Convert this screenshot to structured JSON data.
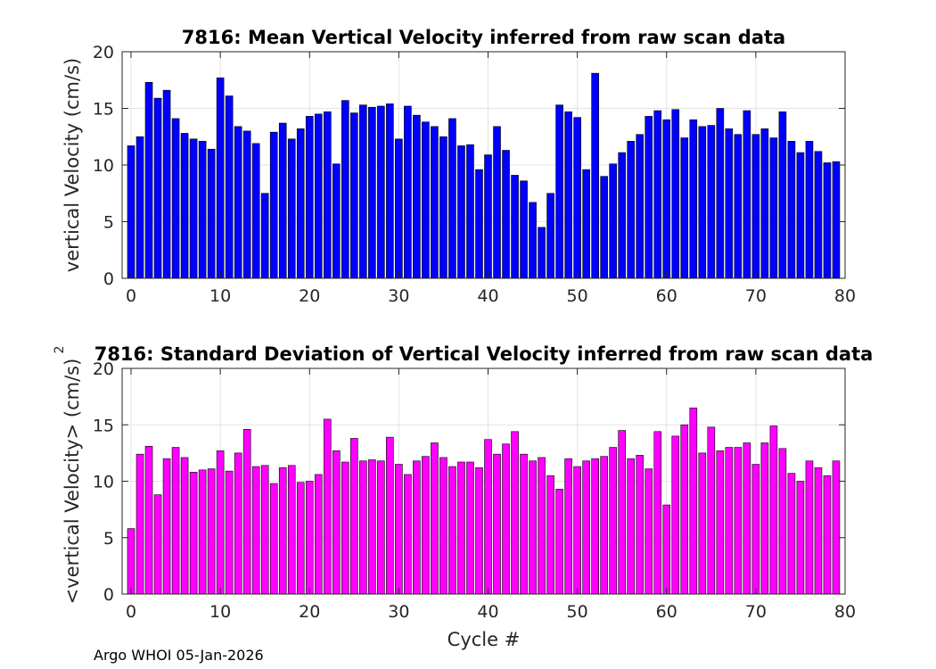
{
  "chart_data": [
    {
      "type": "bar",
      "title": "7816: Mean Vertical Velocity inferred from raw scan data",
      "xlabel": "",
      "ylabel": "vertical Velocity (cm/s)",
      "xlim": [
        -1,
        80
      ],
      "ylim": [
        0,
        20
      ],
      "xticks": [
        0,
        10,
        20,
        30,
        40,
        50,
        60,
        70,
        80
      ],
      "yticks": [
        0,
        5,
        10,
        15,
        20
      ],
      "grid": true,
      "color": "#0000ff",
      "x": [
        0,
        1,
        2,
        3,
        4,
        5,
        6,
        7,
        8,
        9,
        10,
        11,
        12,
        13,
        14,
        15,
        16,
        17,
        18,
        19,
        20,
        21,
        22,
        23,
        24,
        25,
        26,
        27,
        28,
        29,
        30,
        31,
        32,
        33,
        34,
        35,
        36,
        37,
        38,
        39,
        40,
        41,
        42,
        43,
        44,
        45,
        46,
        47,
        48,
        49,
        50,
        51,
        52,
        53,
        54,
        55,
        56,
        57,
        58,
        59,
        60,
        61,
        62,
        63,
        64,
        65,
        66,
        67,
        68,
        69,
        70,
        71,
        72,
        73,
        74,
        75,
        76,
        77,
        78,
        79
      ],
      "values": [
        11.7,
        12.5,
        17.3,
        15.9,
        16.6,
        14.1,
        12.8,
        12.3,
        12.1,
        11.4,
        17.7,
        16.1,
        13.4,
        13.0,
        11.9,
        7.5,
        12.9,
        13.7,
        12.3,
        13.2,
        14.3,
        14.5,
        14.7,
        10.1,
        15.7,
        14.6,
        15.3,
        15.1,
        15.2,
        15.4,
        12.3,
        15.2,
        14.4,
        13.8,
        13.4,
        12.5,
        14.1,
        11.7,
        11.8,
        9.6,
        10.9,
        13.4,
        11.3,
        9.1,
        8.6,
        6.7,
        4.5,
        7.5,
        15.3,
        14.7,
        14.2,
        9.6,
        18.1,
        9.0,
        10.1,
        11.1,
        12.1,
        12.7,
        14.3,
        14.8,
        14.0,
        14.9,
        12.4,
        14.0,
        13.4,
        13.5,
        15.0,
        13.2,
        12.7,
        14.8,
        12.7,
        13.2,
        12.4,
        14.7,
        12.1,
        11.1,
        12.1,
        11.2,
        10.2,
        10.3
      ]
    },
    {
      "type": "bar",
      "title": "7816: Standard Deviation of Vertical Velocity inferred from raw scan data",
      "xlabel": "Cycle #",
      "ylabel": "<vertical Velocity> (cm/s)",
      "ylabel_superscript": "2",
      "xlim": [
        -1,
        80
      ],
      "ylim": [
        0,
        20
      ],
      "xticks": [
        0,
        10,
        20,
        30,
        40,
        50,
        60,
        70,
        80
      ],
      "yticks": [
        0,
        5,
        10,
        15,
        20
      ],
      "grid": true,
      "color": "#ff00ff",
      "x": [
        0,
        1,
        2,
        3,
        4,
        5,
        6,
        7,
        8,
        9,
        10,
        11,
        12,
        13,
        14,
        15,
        16,
        17,
        18,
        19,
        20,
        21,
        22,
        23,
        24,
        25,
        26,
        27,
        28,
        29,
        30,
        31,
        32,
        33,
        34,
        35,
        36,
        37,
        38,
        39,
        40,
        41,
        42,
        43,
        44,
        45,
        46,
        47,
        48,
        49,
        50,
        51,
        52,
        53,
        54,
        55,
        56,
        57,
        58,
        59,
        60,
        61,
        62,
        63,
        64,
        65,
        66,
        67,
        68,
        69,
        70,
        71,
        72,
        73,
        74,
        75,
        76,
        77,
        78,
        79
      ],
      "values": [
        5.8,
        12.4,
        13.1,
        8.8,
        12.0,
        13.0,
        12.1,
        10.8,
        11.0,
        11.1,
        12.7,
        10.9,
        12.5,
        14.6,
        11.3,
        11.4,
        9.8,
        11.2,
        11.4,
        9.9,
        10.0,
        10.6,
        15.5,
        12.7,
        11.7,
        13.8,
        11.8,
        11.9,
        11.8,
        13.9,
        11.5,
        10.6,
        11.8,
        12.2,
        13.4,
        12.1,
        11.3,
        11.7,
        11.7,
        11.2,
        13.7,
        12.4,
        13.3,
        14.4,
        12.4,
        11.8,
        12.1,
        10.5,
        9.3,
        12.0,
        11.3,
        11.8,
        12.0,
        12.2,
        13.0,
        14.5,
        12.0,
        12.3,
        11.1,
        14.4,
        7.9,
        14.0,
        15.0,
        16.5,
        12.5,
        14.8,
        12.7,
        13.0,
        13.0,
        13.4,
        11.5,
        13.4,
        14.9,
        12.9,
        10.7,
        10.0,
        11.8,
        11.2,
        10.5,
        11.8
      ]
    }
  ],
  "footer": "Argo WHOI 05-Jan-2026"
}
